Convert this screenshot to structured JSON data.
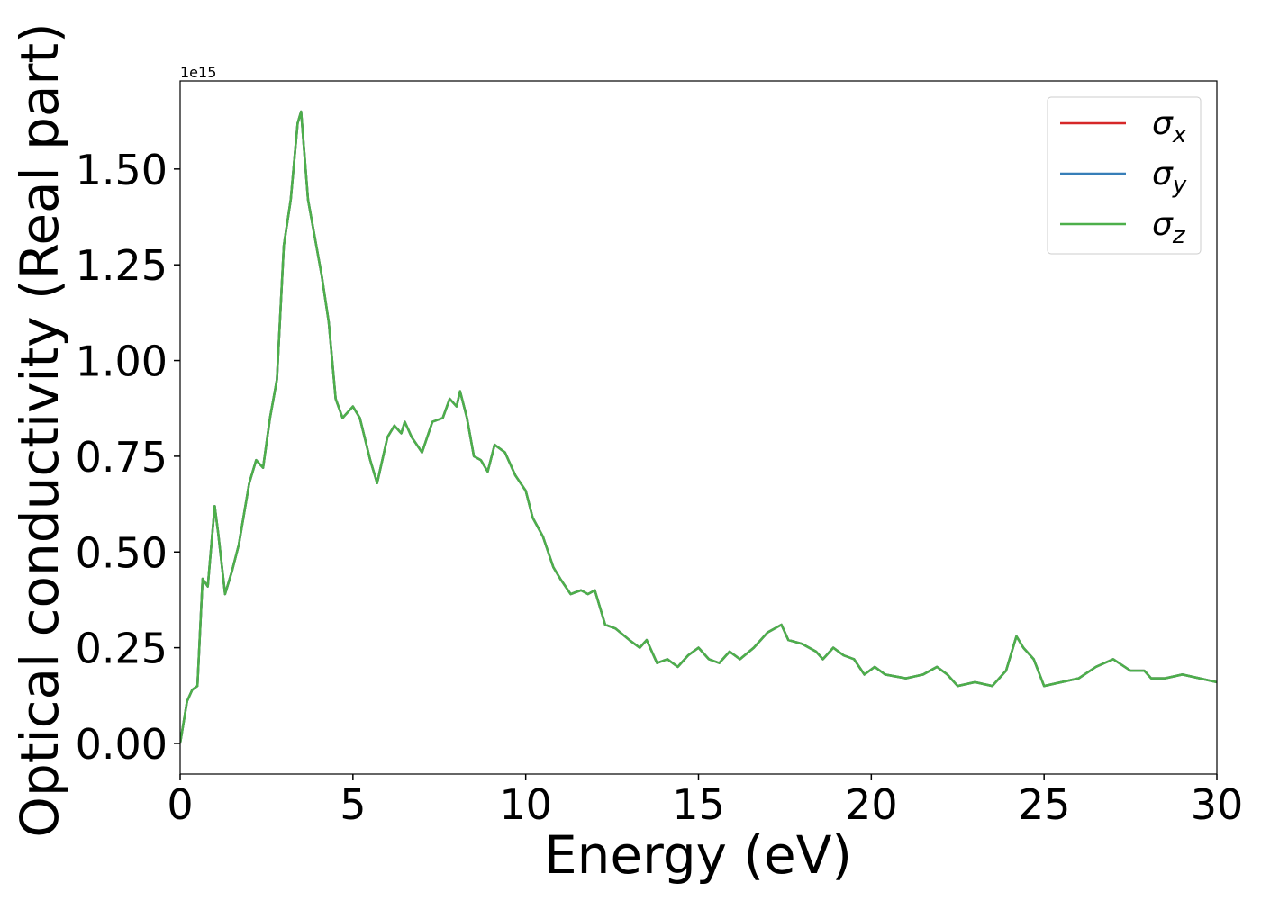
{
  "chart_data": {
    "type": "line",
    "x_label": "Energy (eV)",
    "y_label": "Optical conductivity (Real part)",
    "offset_text": "1e15",
    "x": [
      0,
      0.2,
      0.35,
      0.5,
      0.65,
      0.8,
      1.0,
      1.1,
      1.3,
      1.5,
      1.7,
      2.0,
      2.2,
      2.4,
      2.6,
      2.8,
      3.0,
      3.2,
      3.4,
      3.5,
      3.7,
      3.9,
      4.1,
      4.3,
      4.5,
      4.7,
      5.0,
      5.2,
      5.5,
      5.7,
      6.0,
      6.2,
      6.4,
      6.5,
      6.7,
      7.0,
      7.3,
      7.6,
      7.8,
      8.0,
      8.1,
      8.3,
      8.5,
      8.7,
      8.9,
      9.1,
      9.4,
      9.7,
      10.0,
      10.2,
      10.5,
      10.8,
      11.0,
      11.3,
      11.6,
      11.8,
      12.0,
      12.3,
      12.6,
      13.0,
      13.3,
      13.5,
      13.8,
      14.1,
      14.4,
      14.7,
      15.0,
      15.3,
      15.6,
      15.9,
      16.2,
      16.6,
      17.0,
      17.4,
      17.6,
      18.0,
      18.4,
      18.6,
      18.9,
      19.2,
      19.5,
      19.8,
      20.1,
      20.4,
      21.0,
      21.5,
      21.9,
      22.2,
      22.5,
      23.0,
      23.5,
      23.9,
      24.1,
      24.2,
      24.4,
      24.7,
      25.0,
      25.5,
      26.0,
      26.5,
      27.0,
      27.5,
      27.9,
      28.1,
      28.5,
      29.0,
      29.5,
      30.0
    ],
    "series": [
      {
        "name": "σx",
        "color": "#d62728",
        "values": [
          0,
          0.11,
          0.14,
          0.15,
          0.43,
          0.41,
          0.62,
          0.55,
          0.39,
          0.45,
          0.52,
          0.68,
          0.74,
          0.72,
          0.85,
          0.95,
          1.3,
          1.42,
          1.62,
          1.65,
          1.42,
          1.32,
          1.22,
          1.1,
          0.9,
          0.85,
          0.88,
          0.85,
          0.74,
          0.68,
          0.8,
          0.83,
          0.81,
          0.84,
          0.8,
          0.76,
          0.84,
          0.85,
          0.9,
          0.88,
          0.92,
          0.85,
          0.75,
          0.74,
          0.71,
          0.78,
          0.76,
          0.7,
          0.66,
          0.59,
          0.54,
          0.46,
          0.43,
          0.39,
          0.4,
          0.39,
          0.4,
          0.31,
          0.3,
          0.27,
          0.25,
          0.27,
          0.21,
          0.22,
          0.2,
          0.23,
          0.25,
          0.22,
          0.21,
          0.24,
          0.22,
          0.25,
          0.29,
          0.31,
          0.27,
          0.26,
          0.24,
          0.22,
          0.25,
          0.23,
          0.22,
          0.18,
          0.2,
          0.18,
          0.17,
          0.18,
          0.2,
          0.18,
          0.15,
          0.16,
          0.15,
          0.19,
          0.25,
          0.28,
          0.25,
          0.22,
          0.15,
          0.16,
          0.17,
          0.2,
          0.22,
          0.19,
          0.19,
          0.17,
          0.17,
          0.18,
          0.17,
          0.16
        ]
      },
      {
        "name": "σy",
        "color": "#377eb8",
        "values": [
          0,
          0.11,
          0.14,
          0.15,
          0.43,
          0.41,
          0.62,
          0.55,
          0.39,
          0.45,
          0.52,
          0.68,
          0.74,
          0.72,
          0.85,
          0.95,
          1.3,
          1.42,
          1.62,
          1.65,
          1.42,
          1.32,
          1.22,
          1.1,
          0.9,
          0.85,
          0.88,
          0.85,
          0.74,
          0.68,
          0.8,
          0.83,
          0.81,
          0.84,
          0.8,
          0.76,
          0.84,
          0.85,
          0.9,
          0.88,
          0.92,
          0.85,
          0.75,
          0.74,
          0.71,
          0.78,
          0.76,
          0.7,
          0.66,
          0.59,
          0.54,
          0.46,
          0.43,
          0.39,
          0.4,
          0.39,
          0.4,
          0.31,
          0.3,
          0.27,
          0.25,
          0.27,
          0.21,
          0.22,
          0.2,
          0.23,
          0.25,
          0.22,
          0.21,
          0.24,
          0.22,
          0.25,
          0.29,
          0.31,
          0.27,
          0.26,
          0.24,
          0.22,
          0.25,
          0.23,
          0.22,
          0.18,
          0.2,
          0.18,
          0.17,
          0.18,
          0.2,
          0.18,
          0.15,
          0.16,
          0.15,
          0.19,
          0.25,
          0.28,
          0.25,
          0.22,
          0.15,
          0.16,
          0.17,
          0.2,
          0.22,
          0.19,
          0.19,
          0.17,
          0.17,
          0.18,
          0.17,
          0.16
        ]
      },
      {
        "name": "σz",
        "color": "#4daf4a",
        "values": [
          0,
          0.11,
          0.14,
          0.15,
          0.43,
          0.41,
          0.62,
          0.55,
          0.39,
          0.45,
          0.52,
          0.68,
          0.74,
          0.72,
          0.85,
          0.95,
          1.3,
          1.42,
          1.62,
          1.65,
          1.42,
          1.32,
          1.22,
          1.1,
          0.9,
          0.85,
          0.88,
          0.85,
          0.74,
          0.68,
          0.8,
          0.83,
          0.81,
          0.84,
          0.8,
          0.76,
          0.84,
          0.85,
          0.9,
          0.88,
          0.92,
          0.85,
          0.75,
          0.74,
          0.71,
          0.78,
          0.76,
          0.7,
          0.66,
          0.59,
          0.54,
          0.46,
          0.43,
          0.39,
          0.4,
          0.39,
          0.4,
          0.31,
          0.3,
          0.27,
          0.25,
          0.27,
          0.21,
          0.22,
          0.2,
          0.23,
          0.25,
          0.22,
          0.21,
          0.24,
          0.22,
          0.25,
          0.29,
          0.31,
          0.27,
          0.26,
          0.24,
          0.22,
          0.25,
          0.23,
          0.22,
          0.18,
          0.2,
          0.18,
          0.17,
          0.18,
          0.2,
          0.18,
          0.15,
          0.16,
          0.15,
          0.19,
          0.25,
          0.28,
          0.25,
          0.22,
          0.15,
          0.16,
          0.17,
          0.2,
          0.22,
          0.19,
          0.19,
          0.17,
          0.17,
          0.18,
          0.17,
          0.16
        ]
      }
    ],
    "xlim": [
      0,
      30
    ],
    "xticks": [
      0,
      5,
      10,
      15,
      20,
      25,
      30
    ],
    "ylim": [
      -0.08,
      1.73
    ],
    "yticks": [
      {
        "value": 0,
        "label": "0.00"
      },
      {
        "value": 0.25,
        "label": "0.25"
      },
      {
        "value": 0.5,
        "label": "0.50"
      },
      {
        "value": 0.75,
        "label": "0.75"
      },
      {
        "value": 1.0,
        "label": "1.00"
      },
      {
        "value": 1.25,
        "label": "1.25"
      },
      {
        "value": 1.5,
        "label": "1.50"
      }
    ],
    "legend": "upper right",
    "grid": false
  }
}
